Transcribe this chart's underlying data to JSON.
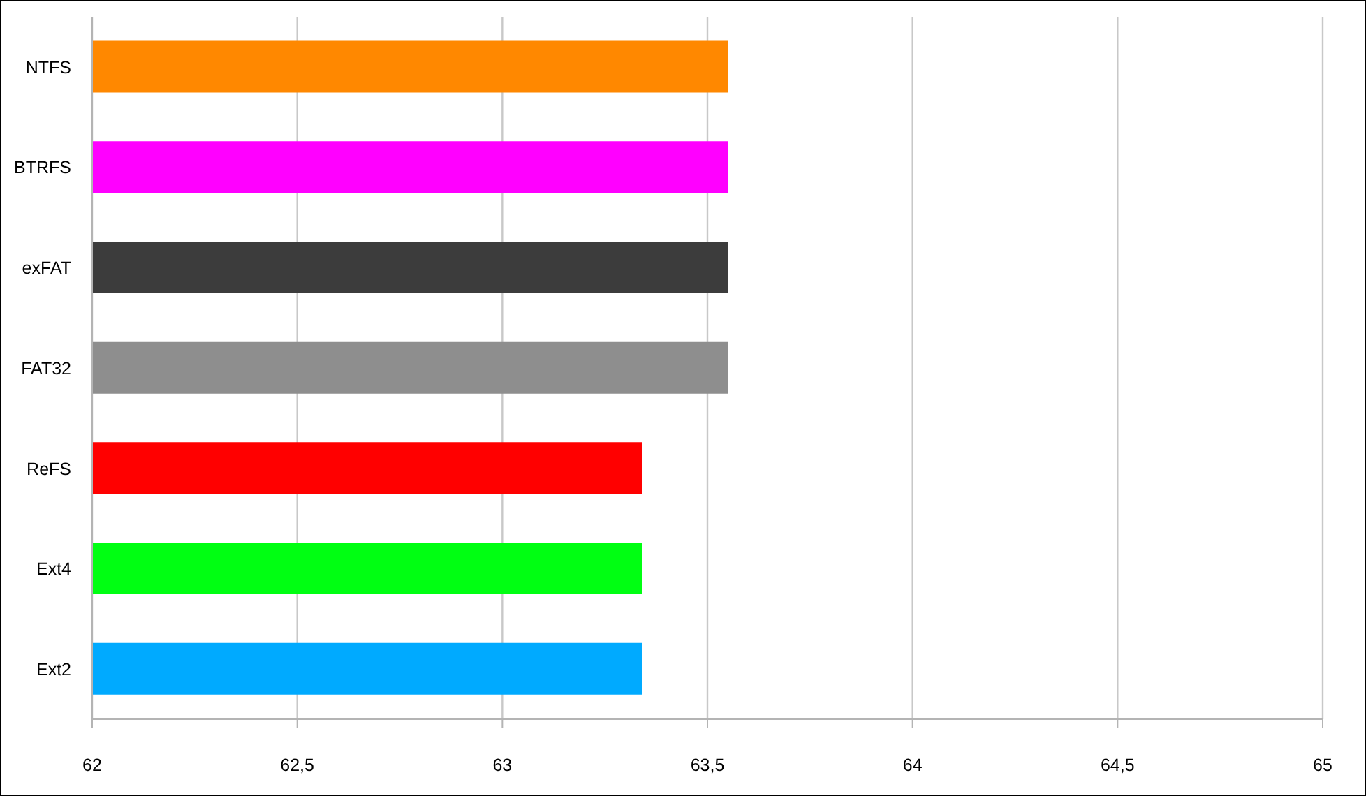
{
  "chart_data": {
    "type": "bar",
    "orientation": "horizontal",
    "categories": [
      "NTFS",
      "BTRFS",
      "exFAT",
      "FAT32",
      "ReFS",
      "Ext4",
      "Ext2"
    ],
    "values": [
      63.55,
      63.55,
      63.55,
      63.55,
      63.34,
      63.34,
      63.34
    ],
    "colors": [
      "#ff8800",
      "#ff00ff",
      "#3c3c3c",
      "#8e8e8e",
      "#ff0000",
      "#00ff12",
      "#00aaff"
    ],
    "xlim": [
      62,
      65
    ],
    "xticks": [
      62,
      {
        "value": 62.5,
        "label": "62,5"
      },
      63,
      {
        "value": 63.5,
        "label": "63,5"
      },
      64,
      {
        "value": 64.5,
        "label": "64,5"
      },
      65
    ],
    "grid": "x",
    "legend": false
  }
}
